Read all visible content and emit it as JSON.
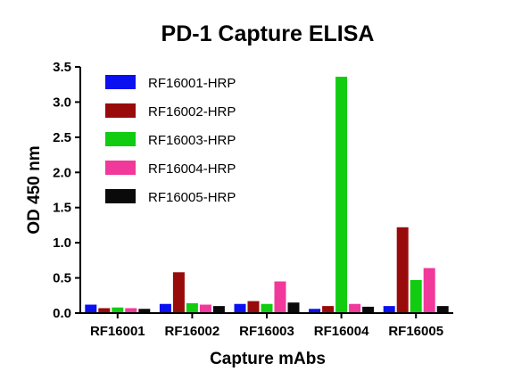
{
  "chart_data": {
    "type": "bar",
    "title": "PD-1 Capture ELISA",
    "xlabel": "Capture mAbs",
    "ylabel": "OD 450 nm",
    "ylim": [
      0,
      3.5
    ],
    "yticks": [
      "0.0",
      "0.5",
      "1.0",
      "1.5",
      "2.0",
      "2.5",
      "3.0",
      "3.5"
    ],
    "categories": [
      "RF16001",
      "RF16002",
      "RF16003",
      "RF16004",
      "RF16005"
    ],
    "legend_position": "top-left",
    "grid": false,
    "series": [
      {
        "name": "RF16001-HRP",
        "color": "#0a10f0",
        "values": [
          0.12,
          0.13,
          0.13,
          0.06,
          0.1
        ]
      },
      {
        "name": "RF16002-HRP",
        "color": "#990a0a",
        "values": [
          0.07,
          0.58,
          0.17,
          0.1,
          1.22
        ]
      },
      {
        "name": "RF16003-HRP",
        "color": "#11cc11",
        "values": [
          0.08,
          0.14,
          0.13,
          3.36,
          0.47
        ]
      },
      {
        "name": "RF16004-HRP",
        "color": "#f0399a",
        "values": [
          0.07,
          0.12,
          0.45,
          0.13,
          0.64
        ]
      },
      {
        "name": "RF16005-HRP",
        "color": "#0a0a0a",
        "values": [
          0.06,
          0.1,
          0.15,
          0.09,
          0.1
        ]
      }
    ]
  }
}
